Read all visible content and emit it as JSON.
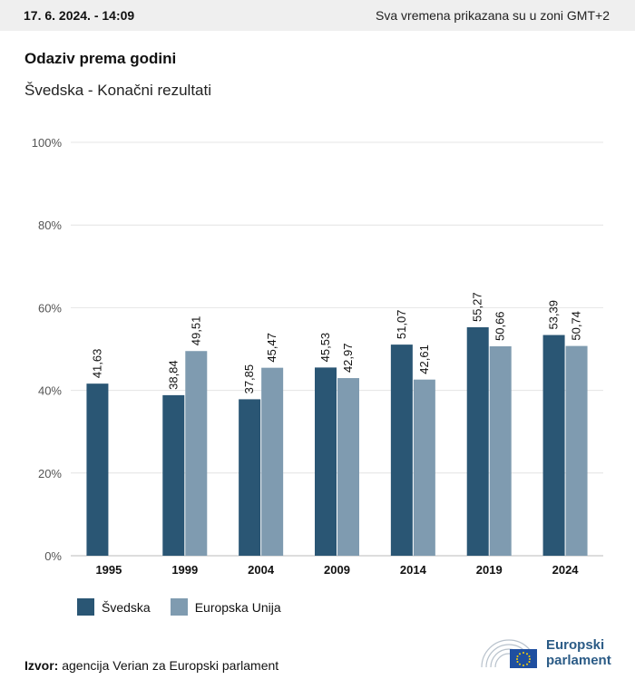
{
  "header": {
    "datetime": "17. 6. 2024. - 14:09",
    "timezone_note": "Sva vremena prikazana su u zoni GMT+2"
  },
  "chart_data": {
    "type": "bar",
    "title": "Odaziv prema godini",
    "subtitle": "Švedska - Konačni rezultati",
    "categories": [
      "1995",
      "1999",
      "2004",
      "2009",
      "2014",
      "2019",
      "2024"
    ],
    "series": [
      {
        "name": "Švedska",
        "color": "#2a5674",
        "values": [
          41.63,
          38.84,
          37.85,
          45.53,
          51.07,
          55.27,
          53.39
        ],
        "labels": [
          "41,63",
          "38,84",
          "37,85",
          "45,53",
          "51,07",
          "55,27",
          "53,39"
        ]
      },
      {
        "name": "Europska Unija",
        "color": "#7f9bb0",
        "values": [
          null,
          49.51,
          45.47,
          42.97,
          42.61,
          50.66,
          50.74
        ],
        "labels": [
          "",
          "49,51",
          "45,47",
          "42,97",
          "42,61",
          "50,66",
          "50,74"
        ]
      }
    ],
    "yticks": [
      "0%",
      "20%",
      "40%",
      "60%",
      "80%",
      "100%"
    ],
    "ylim": [
      0,
      100
    ],
    "grid": true,
    "legend_position": "bottom-left"
  },
  "footer": {
    "source_label": "Izvor:",
    "source_text": "agencija Verian za Europski parlament",
    "logo_line1": "Europski",
    "logo_line2": "parlament"
  }
}
